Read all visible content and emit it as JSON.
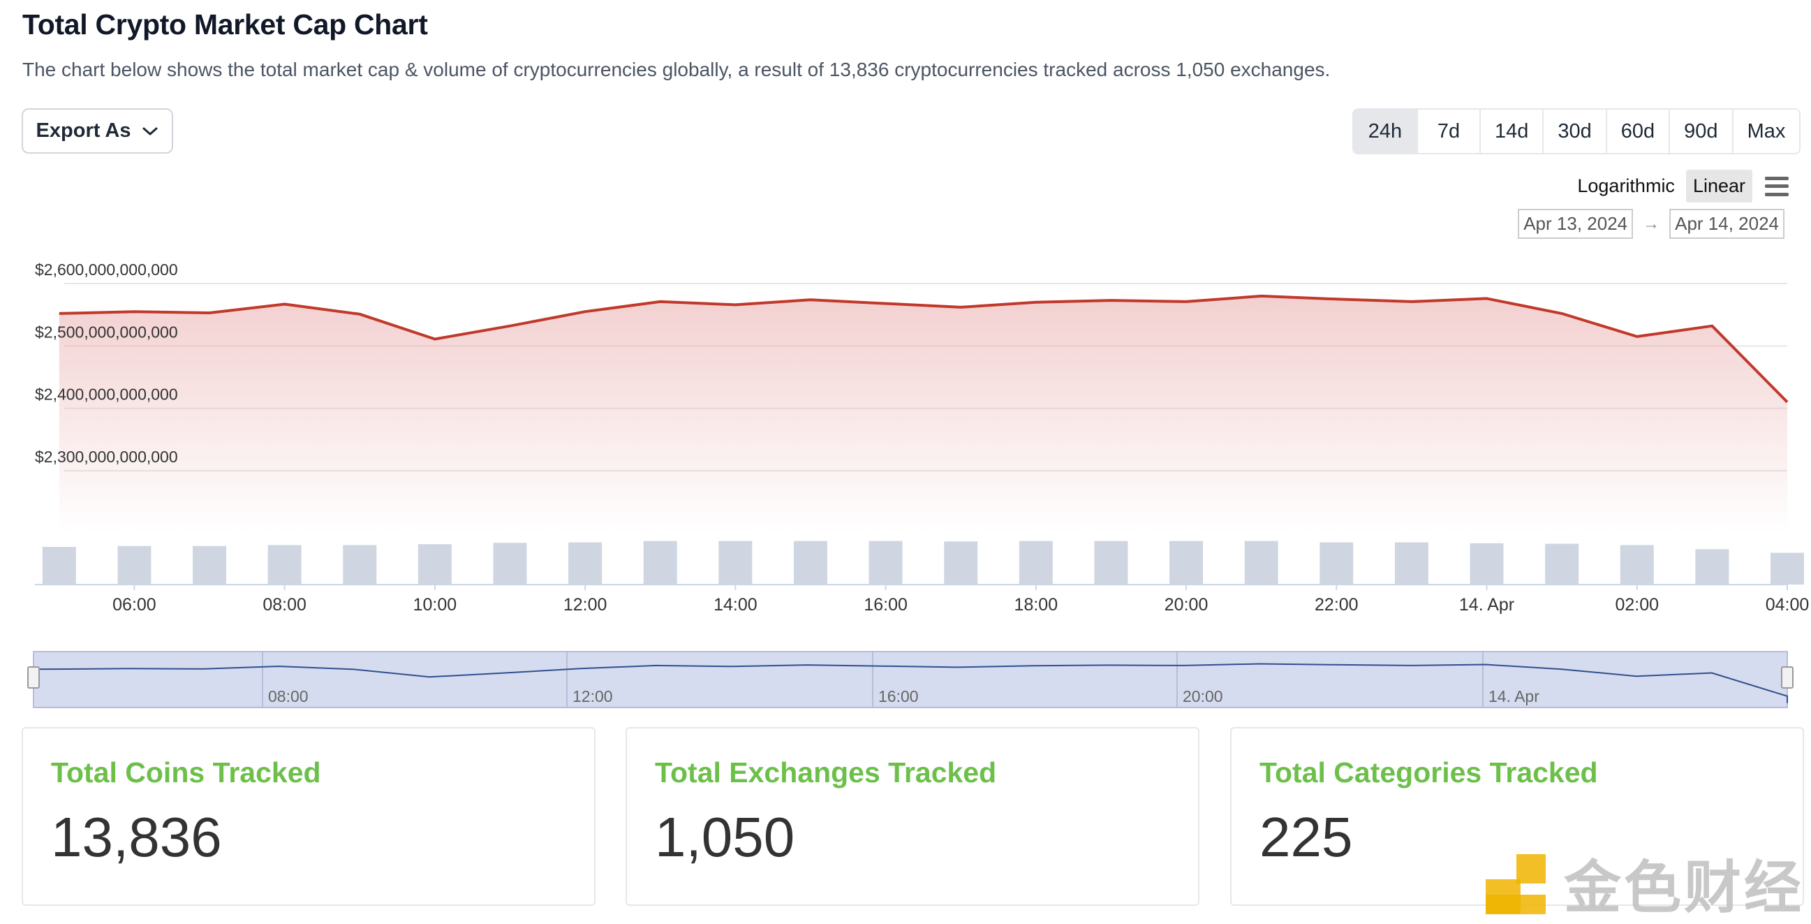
{
  "header": {
    "title": "Total Crypto Market Cap Chart",
    "description": "The chart below shows the total market cap & volume of cryptocurrencies globally, a result of 13,836 cryptocurrencies tracked across 1,050 exchanges."
  },
  "toolbar": {
    "export_label": "Export As",
    "ranges": [
      "24h",
      "7d",
      "14d",
      "30d",
      "60d",
      "90d",
      "Max"
    ],
    "active_range": "24h",
    "scale_options": [
      "Logarithmic",
      "Linear"
    ],
    "active_scale": "Linear",
    "date_from": "Apr 13, 2024",
    "date_arrow": "→",
    "date_to": "Apr 14, 2024"
  },
  "colors": {
    "line": "#c0392b",
    "area": "#f2c4c4",
    "volume_bar": "#cfd6e1",
    "navigator_fill": "#d6dcef",
    "navigator_line": "#2f4f8f",
    "stat_label": "#6cc04a"
  },
  "chart_data": {
    "type": "line",
    "ylim": [
      2300000000000,
      2600000000000
    ],
    "yticks": [
      {
        "value": 2600000000000,
        "label": "$2,600,000,000,000"
      },
      {
        "value": 2500000000000,
        "label": "$2,500,000,000,000"
      },
      {
        "value": 2400000000000,
        "label": "$2,400,000,000,000"
      },
      {
        "value": 2300000000000,
        "label": "$2,300,000,000,000"
      }
    ],
    "xlim": [
      "2024-04-13 04:30",
      "2024-04-14 04:00"
    ],
    "xticks": [
      {
        "x": "2024-04-13 06:00",
        "label": "06:00"
      },
      {
        "x": "2024-04-13 08:00",
        "label": "08:00"
      },
      {
        "x": "2024-04-13 10:00",
        "label": "10:00"
      },
      {
        "x": "2024-04-13 12:00",
        "label": "12:00"
      },
      {
        "x": "2024-04-13 14:00",
        "label": "14:00"
      },
      {
        "x": "2024-04-13 16:00",
        "label": "16:00"
      },
      {
        "x": "2024-04-13 18:00",
        "label": "18:00"
      },
      {
        "x": "2024-04-13 20:00",
        "label": "20:00"
      },
      {
        "x": "2024-04-13 22:00",
        "label": "22:00"
      },
      {
        "x": "2024-04-14 00:00",
        "label": "14. Apr"
      },
      {
        "x": "2024-04-14 02:00",
        "label": "02:00"
      },
      {
        "x": "2024-04-14 04:00",
        "label": "04:00"
      }
    ],
    "series": [
      {
        "type": "line",
        "x": [
          "2024-04-13 05:00",
          "2024-04-13 06:00",
          "2024-04-13 07:00",
          "2024-04-13 08:00",
          "2024-04-13 09:00",
          "2024-04-13 10:00",
          "2024-04-13 11:00",
          "2024-04-13 12:00",
          "2024-04-13 13:00",
          "2024-04-13 14:00",
          "2024-04-13 15:00",
          "2024-04-13 16:00",
          "2024-04-13 17:00",
          "2024-04-13 18:00",
          "2024-04-13 19:00",
          "2024-04-13 20:00",
          "2024-04-13 21:00",
          "2024-04-13 22:00",
          "2024-04-13 23:00",
          "2024-04-14 00:00",
          "2024-04-14 01:00",
          "2024-04-14 02:00",
          "2024-04-14 03:00",
          "2024-04-14 04:00"
        ],
        "values": [
          2552000000000,
          2555000000000,
          2553000000000,
          2567000000000,
          2551000000000,
          2511000000000,
          2532000000000,
          2555000000000,
          2571000000000,
          2566000000000,
          2574000000000,
          2568000000000,
          2562000000000,
          2570000000000,
          2573000000000,
          2571000000000,
          2580000000000,
          2575000000000,
          2571000000000,
          2576000000000,
          2552000000000,
          2515000000000,
          2532000000000,
          2410000000000
        ]
      },
      {
        "type": "bar",
        "x": [
          "2024-04-13 05:00",
          "2024-04-13 06:00",
          "2024-04-13 07:00",
          "2024-04-13 08:00",
          "2024-04-13 09:00",
          "2024-04-13 10:00",
          "2024-04-13 11:00",
          "2024-04-13 12:00",
          "2024-04-13 13:00",
          "2024-04-13 14:00",
          "2024-04-13 15:00",
          "2024-04-13 16:00",
          "2024-04-13 17:00",
          "2024-04-13 18:00",
          "2024-04-13 19:00",
          "2024-04-13 20:00",
          "2024-04-13 21:00",
          "2024-04-13 22:00",
          "2024-04-13 23:00",
          "2024-04-14 00:00",
          "2024-04-14 01:00",
          "2024-04-14 02:00",
          "2024-04-14 03:00",
          "2024-04-14 04:00"
        ],
        "values": [
          0.83,
          0.85,
          0.85,
          0.87,
          0.87,
          0.89,
          0.92,
          0.93,
          0.96,
          0.96,
          0.96,
          0.96,
          0.95,
          0.96,
          0.96,
          0.96,
          0.96,
          0.93,
          0.93,
          0.91,
          0.9,
          0.87,
          0.78,
          0.7
        ]
      }
    ],
    "navigator": {
      "labels": [
        "08:00",
        "12:00",
        "16:00",
        "20:00",
        "14. Apr"
      ]
    },
    "grid": true,
    "legend": "none"
  },
  "stats": [
    {
      "label": "Total Coins Tracked",
      "value": "13,836"
    },
    {
      "label": "Total Exchanges Tracked",
      "value": "1,050"
    },
    {
      "label": "Total Categories Tracked",
      "value": "225"
    }
  ],
  "watermark": {
    "text": "金色财经"
  }
}
